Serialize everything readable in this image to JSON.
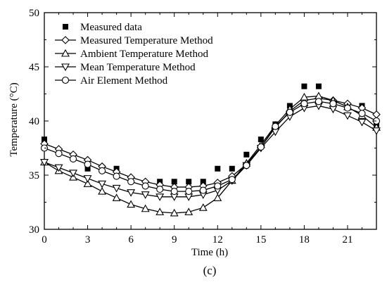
{
  "chart_data": {
    "type": "line",
    "title": "",
    "xlabel": "Time (h)",
    "ylabel": "Temperature (°C)",
    "xlim": [
      0,
      23
    ],
    "ylim": [
      30,
      50
    ],
    "xticks": [
      0,
      3,
      6,
      9,
      12,
      15,
      18,
      21
    ],
    "yticks": [
      30,
      35,
      40,
      45,
      50
    ],
    "grid": false,
    "legend_position": "top-left",
    "caption": "(c)",
    "series": [
      {
        "name": "Measured data",
        "marker": "filled-square",
        "line": false,
        "x": [
          0,
          3,
          5,
          8,
          9,
          10,
          11,
          12,
          13,
          14,
          15,
          16,
          17,
          18,
          19,
          20,
          21,
          22,
          23
        ],
        "values": [
          38.3,
          35.6,
          35.6,
          34.4,
          34.4,
          34.4,
          34.4,
          35.6,
          35.6,
          36.9,
          38.3,
          39.7,
          41.4,
          43.2,
          43.2,
          41.4,
          41.4,
          41.4,
          39.7
        ]
      },
      {
        "name": "Measured Temperature Method",
        "marker": "diamond",
        "line": true,
        "x": [
          0,
          1,
          2,
          3,
          4,
          5,
          6,
          7,
          8,
          9,
          10,
          11,
          12,
          13,
          14,
          15,
          16,
          17,
          18,
          19,
          20,
          21,
          22,
          23
        ],
        "values": [
          37.9,
          37.4,
          36.9,
          36.4,
          35.8,
          35.3,
          34.8,
          34.4,
          34.1,
          33.9,
          33.9,
          34.0,
          34.3,
          34.9,
          36.0,
          37.6,
          39.4,
          40.9,
          41.9,
          42.1,
          41.9,
          41.6,
          41.2,
          40.6
        ]
      },
      {
        "name": "Ambient Temperature Method",
        "marker": "triangle-up",
        "line": true,
        "x": [
          0,
          1,
          2,
          3,
          4,
          5,
          6,
          7,
          8,
          9,
          10,
          11,
          12,
          13,
          14,
          15,
          16,
          17,
          18,
          19,
          20,
          21,
          22,
          23
        ],
        "values": [
          36.2,
          35.4,
          34.8,
          34.2,
          33.5,
          32.9,
          32.3,
          31.9,
          31.6,
          31.5,
          31.6,
          32.0,
          32.9,
          34.5,
          36.1,
          37.8,
          39.6,
          41.1,
          42.2,
          42.3,
          41.9,
          41.3,
          40.5,
          39.4
        ]
      },
      {
        "name": "Mean Temperature Method",
        "marker": "triangle-down",
        "line": true,
        "x": [
          0,
          1,
          2,
          3,
          4,
          5,
          6,
          7,
          8,
          9,
          10,
          11,
          12,
          13,
          14,
          15,
          16,
          17,
          18,
          19,
          20,
          21,
          22,
          23
        ],
        "values": [
          36.2,
          35.7,
          35.2,
          34.7,
          34.2,
          33.8,
          33.4,
          33.2,
          33.0,
          33.0,
          33.0,
          33.2,
          33.6,
          34.5,
          35.9,
          37.5,
          39.0,
          40.4,
          41.2,
          41.4,
          41.1,
          40.5,
          39.9,
          39.1
        ]
      },
      {
        "name": "Air Element Method",
        "marker": "circle",
        "line": true,
        "x": [
          0,
          1,
          2,
          3,
          4,
          5,
          6,
          7,
          8,
          9,
          10,
          11,
          12,
          13,
          14,
          15,
          16,
          17,
          18,
          19,
          20,
          21,
          22,
          23
        ],
        "values": [
          37.5,
          37.0,
          36.5,
          36.0,
          35.4,
          34.9,
          34.4,
          34.0,
          33.7,
          33.5,
          33.5,
          33.6,
          34.0,
          34.6,
          35.9,
          37.6,
          39.5,
          40.8,
          41.6,
          41.8,
          41.6,
          41.2,
          40.7,
          40.0
        ]
      }
    ]
  }
}
